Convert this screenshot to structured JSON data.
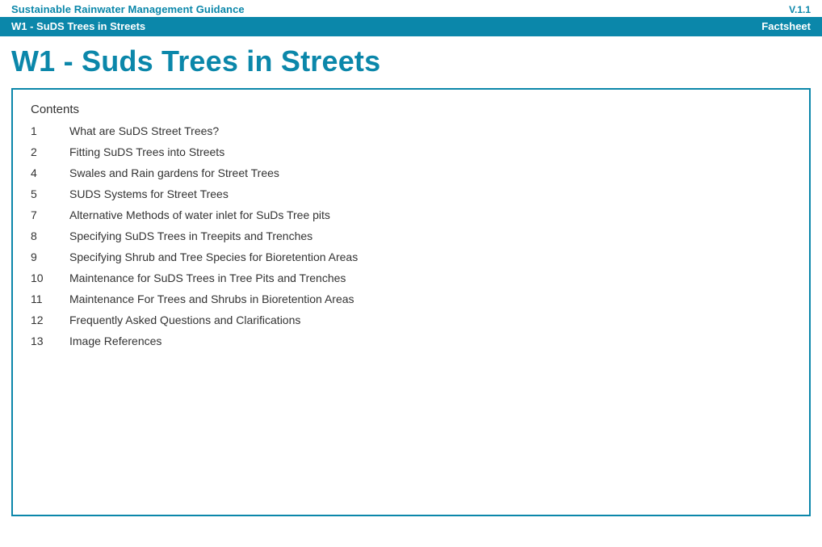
{
  "colors": {
    "brand": "#0b87aa",
    "text": "#333333",
    "background": "#ffffff"
  },
  "header": {
    "guidance_title": "Sustainable Rainwater Management Guidance",
    "version": "V.1.1"
  },
  "ribbon": {
    "left": "W1 - SuDS Trees in Streets",
    "right": "Factsheet"
  },
  "main_heading": "W1 - Suds Trees in Streets",
  "contents_title": "Contents",
  "toc": [
    {
      "num": "1",
      "label": "What are SuDS Street Trees?"
    },
    {
      "num": "2",
      "label": "Fitting SuDS Trees into Streets"
    },
    {
      "num": "4",
      "label": "Swales and Rain gardens for Street Trees"
    },
    {
      "num": "5",
      "label": "SUDS Systems for Street Trees"
    },
    {
      "num": "7",
      "label": "Alternative Methods of water inlet for SuDs Tree pits"
    },
    {
      "num": "8",
      "label": "Specifying SuDS Trees in Treepits and Trenches"
    },
    {
      "num": "9",
      "label": "Specifying Shrub and Tree Species for Bioretention Areas"
    },
    {
      "num": "10",
      "label": "Maintenance for SuDS Trees in Tree Pits and Trenches"
    },
    {
      "num": "11",
      "label": "Maintenance For Trees and Shrubs in Bioretention Areas"
    },
    {
      "num": "12",
      "label": "Frequently Asked Questions and Clarifications"
    },
    {
      "num": "13",
      "label": "Image References"
    }
  ]
}
